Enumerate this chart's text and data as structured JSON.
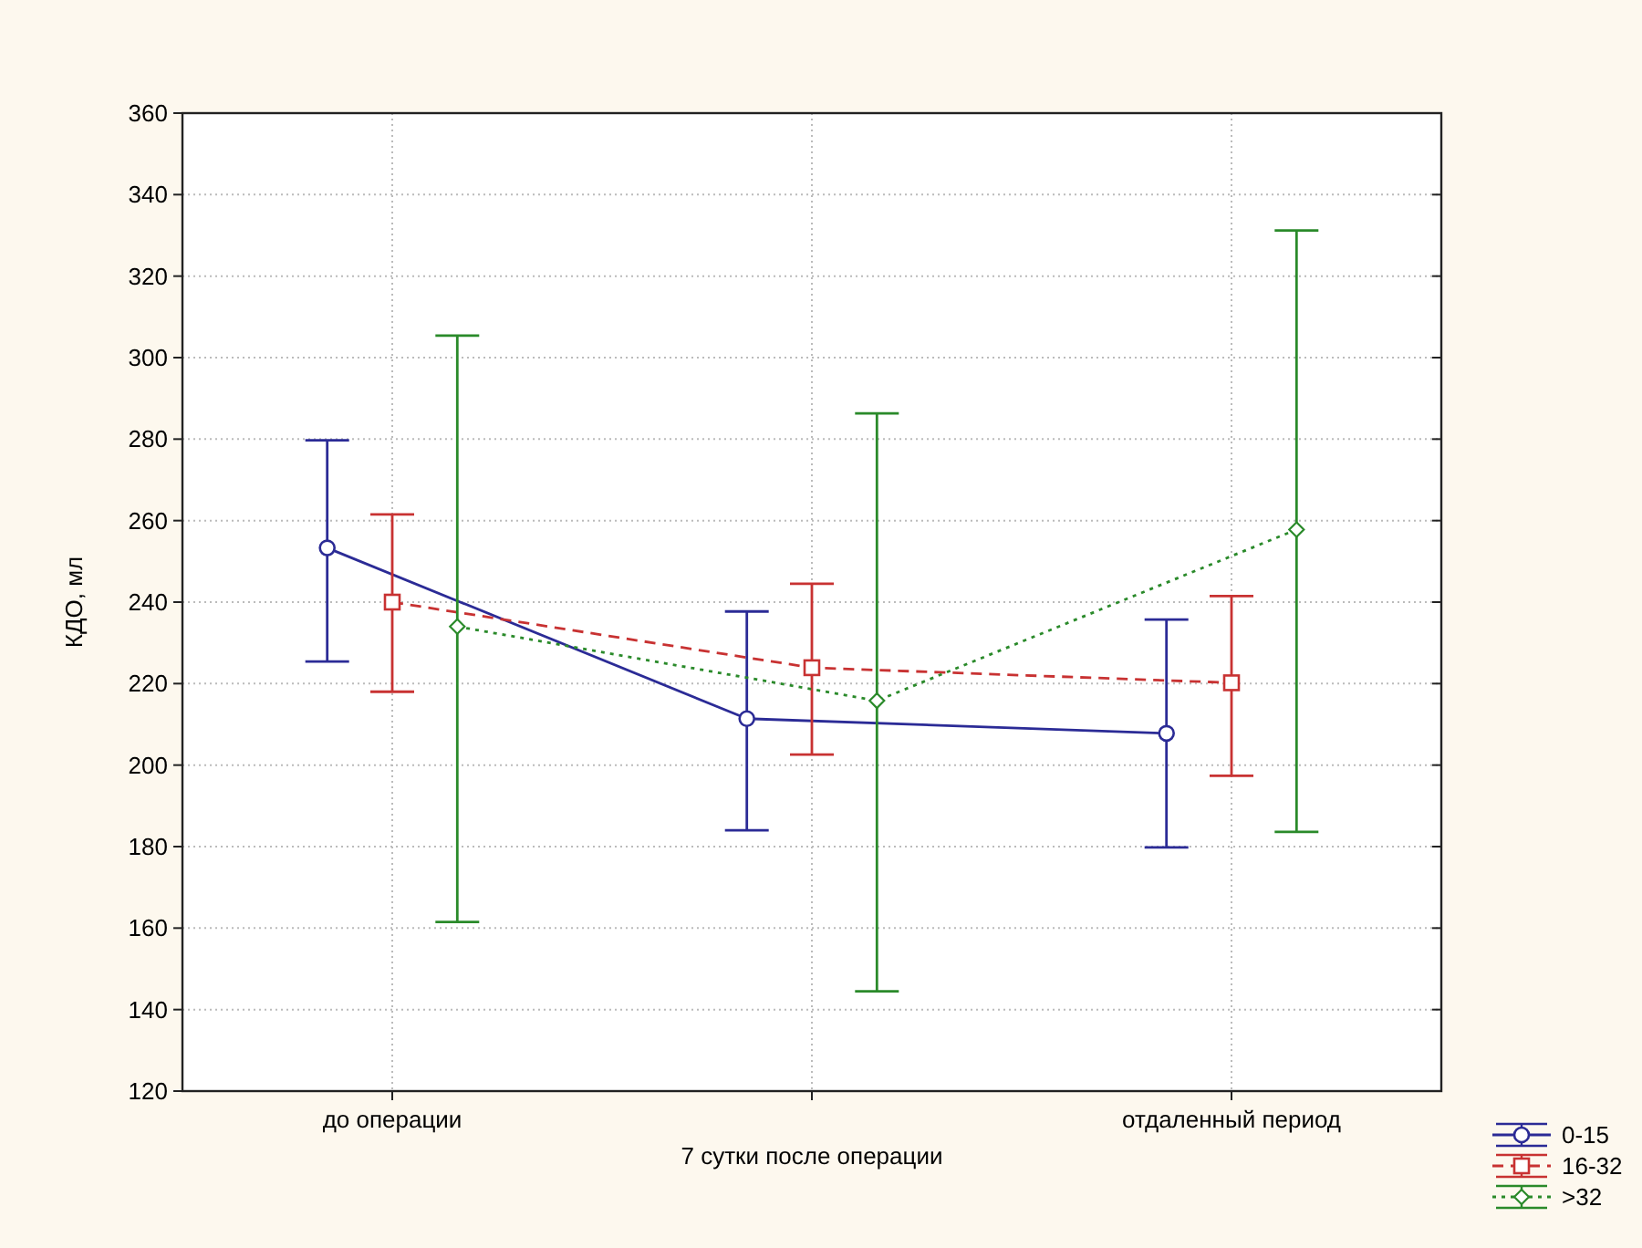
{
  "chart_data": {
    "type": "line",
    "ylabel": "КДО, мл",
    "categories": [
      "до операции",
      "7 сутки после операции",
      "отдаленный период"
    ],
    "ylim": [
      120,
      360
    ],
    "yticks": [
      120,
      140,
      160,
      180,
      200,
      220,
      240,
      260,
      280,
      300,
      320,
      340,
      360
    ],
    "grid": true,
    "legend": "bottom right",
    "series": [
      {
        "name": "0-15",
        "color": "#2b2b96",
        "marker": "circle",
        "line_style": "solid",
        "values": [
          253.3,
          211.4,
          207.8
        ],
        "errors": [
          [
            225.4,
            279.7
          ],
          [
            184,
            237.7
          ],
          [
            179.8,
            235.7
          ]
        ]
      },
      {
        "name": "16-32",
        "color": "#c83232",
        "marker": "square",
        "line_style": "dashed",
        "values": [
          240,
          223.9,
          220.2
        ],
        "errors": [
          [
            218,
            261.5
          ],
          [
            202.6,
            244.5
          ],
          [
            197.4,
            241.5
          ]
        ]
      },
      {
        "name": ">32",
        "color": "#2a8a2a",
        "marker": "diamond",
        "line_style": "dotted",
        "values": [
          234,
          215.8,
          257.8
        ],
        "errors": [
          [
            161.5,
            305.4
          ],
          [
            144.5,
            286.3
          ],
          [
            183.6,
            331.2
          ]
        ]
      }
    ]
  }
}
